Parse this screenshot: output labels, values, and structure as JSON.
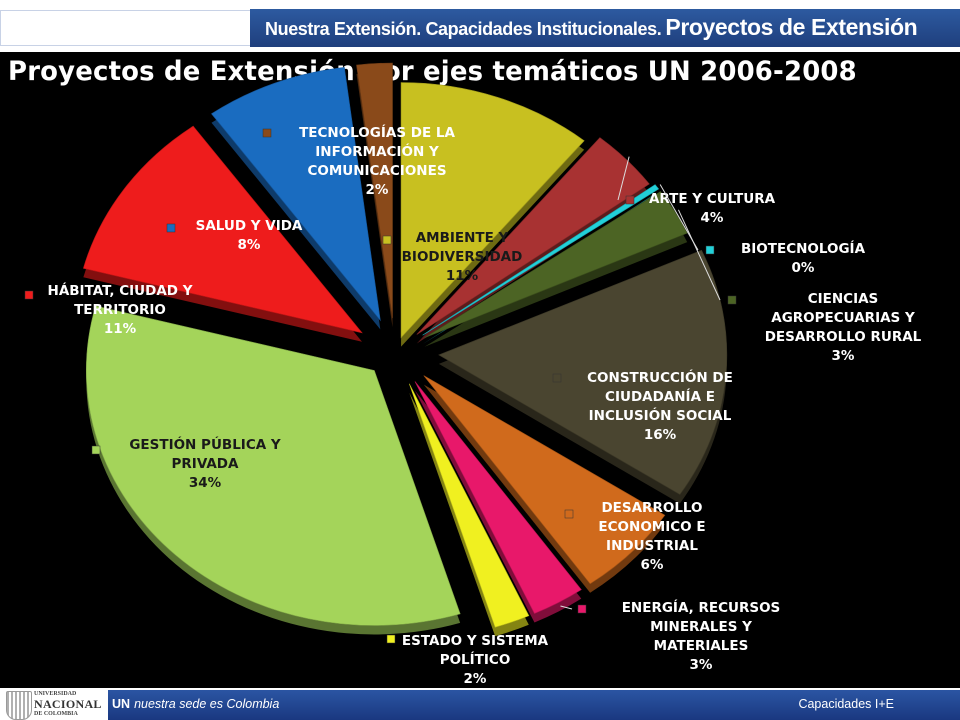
{
  "header": {
    "title_part1": "Nuestra Extensión. Capacidades Institucionales.",
    "title_part2": "Proyectos de Extensión"
  },
  "footer": {
    "brand": "UN",
    "tagline": "nuestra sede es Colombia",
    "right": "Capacidades I+E",
    "logo_line1": "UNIVERSIDAD",
    "logo_line2": "NACIONAL",
    "logo_line3": "DE COLOMBIA"
  },
  "chart_data": {
    "type": "pie",
    "title": "Proyectos de Extensión por ejes temáticos UN  2006-2008",
    "unit": "%",
    "slices": [
      {
        "label": [
          "AMBIENTE Y",
          "BIODIVERSIDAD"
        ],
        "value": 11,
        "color": "#c8c020"
      },
      {
        "label": [
          "ARTE Y CULTURA"
        ],
        "value": 4,
        "color": "#a83232"
      },
      {
        "label": [
          "BIOTECNOLOGÍA"
        ],
        "value": 0,
        "color": "#22d0d8"
      },
      {
        "label": [
          "CIENCIAS",
          "AGROPECUARIAS Y",
          "DESARROLLO RURAL"
        ],
        "value": 3,
        "color": "#4c6424"
      },
      {
        "label": [
          "CONSTRUCCIÓN DE",
          "CIUDADANÍA E",
          "INCLUSIÓN SOCIAL"
        ],
        "value": 16,
        "color": "#4a4530"
      },
      {
        "label": [
          "DESARROLLO",
          "ECONOMICO E",
          "INDUSTRIAL"
        ],
        "value": 6,
        "color": "#d06a1c"
      },
      {
        "label": [
          "ENERGÍA, RECURSOS",
          "MINERALES Y",
          "MATERIALES"
        ],
        "value": 3,
        "color": "#e8186a"
      },
      {
        "label": [
          "ESTADO Y SISTEMA",
          "POLÍTICO"
        ],
        "value": 2,
        "color": "#f0f020"
      },
      {
        "label": [
          "GESTIÓN PÚBLICA Y",
          "PRIVADA"
        ],
        "value": 34,
        "color": "#a4d45a"
      },
      {
        "label": [
          "HÁBITAT, CIUDAD Y",
          "TERRITORIO"
        ],
        "value": 11,
        "color": "#ee1c1c"
      },
      {
        "label": [
          "SALUD Y VIDA"
        ],
        "value": 8,
        "color": "#1a6cc0"
      },
      {
        "label": [
          "TECNOLOGÍAS DE LA",
          "INFORMACIÓN Y",
          "COMUNICACIONES"
        ],
        "value": 2,
        "color": "#8a4a1a"
      }
    ]
  }
}
